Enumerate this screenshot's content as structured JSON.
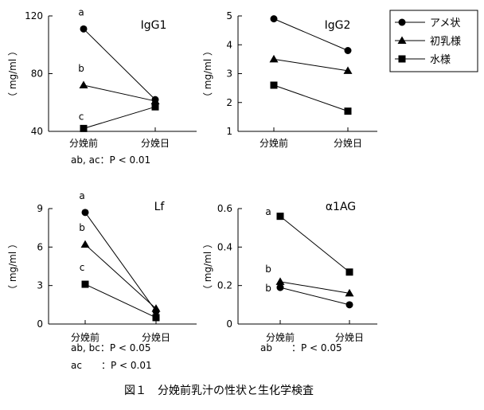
{
  "caption": "図１　分娩前乳汁の性状と生化学検査",
  "legend": {
    "position": "top-right",
    "entries": [
      {
        "name": "アメ状",
        "marker": "circle"
      },
      {
        "name": "初乳様",
        "marker": "triangle"
      },
      {
        "name": "水様",
        "marker": "square"
      }
    ]
  },
  "chart_data": [
    {
      "type": "line",
      "title": "IgG1",
      "ylabel": "（ mg/ml ）",
      "categories": [
        "分娩前",
        "分娩日"
      ],
      "ylim": [
        40,
        120
      ],
      "yticks": [
        "40",
        "80",
        "120"
      ],
      "series": [
        {
          "name": "アメ状",
          "marker": "circle",
          "values": [
            111,
            62
          ]
        },
        {
          "name": "初乳様",
          "marker": "triangle",
          "values": [
            72,
            61
          ]
        },
        {
          "name": "水様",
          "marker": "square",
          "values": [
            42,
            57
          ]
        }
      ],
      "letters": [
        {
          "series": "アメ状",
          "text": "a"
        },
        {
          "series": "初乳様",
          "text": "b"
        },
        {
          "series": "水様",
          "text": "c"
        }
      ],
      "notes": [
        "ab, ac：P < 0.01"
      ]
    },
    {
      "type": "line",
      "title": "IgG2",
      "ylabel": "（ mg/ml ）",
      "categories": [
        "分娩前",
        "分娩日"
      ],
      "ylim": [
        1,
        5
      ],
      "yticks": [
        "1",
        "2",
        "3",
        "4",
        "5"
      ],
      "series": [
        {
          "name": "アメ状",
          "marker": "circle",
          "values": [
            4.9,
            3.8
          ]
        },
        {
          "name": "初乳様",
          "marker": "triangle",
          "values": [
            3.5,
            3.1
          ]
        },
        {
          "name": "水様",
          "marker": "square",
          "values": [
            2.6,
            1.7
          ]
        }
      ],
      "letters": [],
      "notes": []
    },
    {
      "type": "line",
      "title": "Lf",
      "ylabel": "（ mg/ml ）",
      "categories": [
        "分娩前",
        "分娩日"
      ],
      "ylim": [
        0,
        9
      ],
      "yticks": [
        "0",
        "3",
        "6",
        "9"
      ],
      "series": [
        {
          "name": "アメ状",
          "marker": "circle",
          "values": [
            8.7,
            1.0
          ]
        },
        {
          "name": "初乳様",
          "marker": "triangle",
          "values": [
            6.2,
            1.2
          ]
        },
        {
          "name": "水様",
          "marker": "square",
          "values": [
            3.1,
            0.5
          ]
        }
      ],
      "letters": [
        {
          "series": "アメ状",
          "text": "a"
        },
        {
          "series": "初乳様",
          "text": "b"
        },
        {
          "series": "水様",
          "text": "c"
        }
      ],
      "notes": [
        "ab, bc：P < 0.05",
        "ac　　：P < 0.01"
      ]
    },
    {
      "type": "line",
      "title": "α1AG",
      "ylabel": "（ mg/ml ）",
      "categories": [
        "分娩前",
        "分娩日"
      ],
      "ylim": [
        0,
        0.6
      ],
      "yticks": [
        "0",
        "0.2",
        "0.4",
        "0.6"
      ],
      "series": [
        {
          "name": "アメ状",
          "marker": "circle",
          "values": [
            0.19,
            0.1
          ]
        },
        {
          "name": "初乳様",
          "marker": "triangle",
          "values": [
            0.22,
            0.16
          ]
        },
        {
          "name": "水様",
          "marker": "square",
          "values": [
            0.56,
            0.27
          ]
        }
      ],
      "letters": [
        {
          "series": "水様",
          "text": "a"
        },
        {
          "series": "初乳様",
          "text": "b"
        },
        {
          "series": "アメ状",
          "text": "b"
        }
      ],
      "notes": [
        "ab　　：P < 0.05"
      ]
    }
  ]
}
